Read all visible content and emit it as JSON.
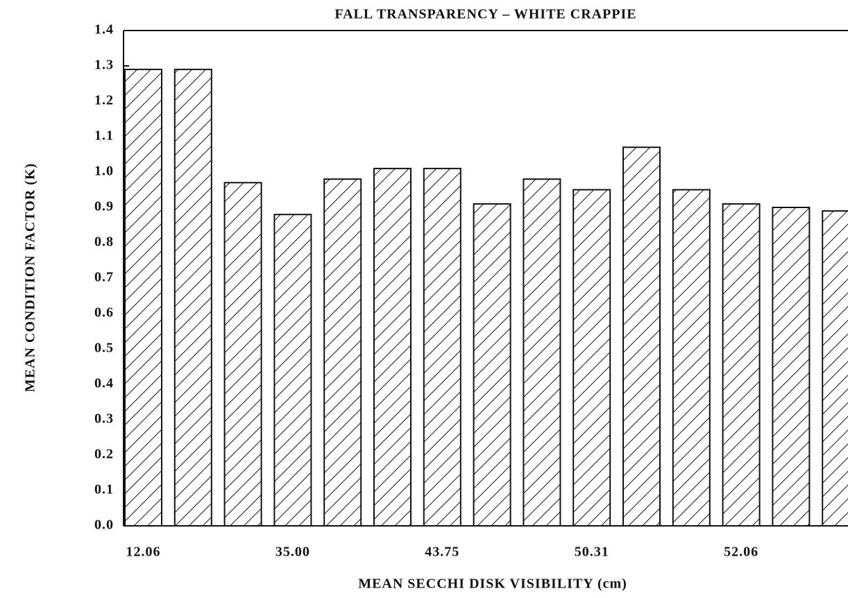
{
  "chart_data": {
    "type": "bar",
    "title": "FALL TRANSPARENCY – WHITE CRAPPIE",
    "x_label": "MEAN SECCHI DISK VISIBILITY (cm)",
    "y_label": "MEAN CONDITION FACTOR (K)",
    "categories": [
      "12.06",
      null,
      null,
      "35.00",
      null,
      null,
      "43.75",
      null,
      null,
      "50.31",
      null,
      null,
      "52.06",
      null,
      null
    ],
    "values": [
      1.29,
      1.29,
      0.97,
      0.88,
      0.98,
      1.01,
      1.01,
      0.91,
      0.98,
      0.95,
      1.07,
      0.95,
      0.91,
      0.9,
      0.89
    ],
    "color": "#111111",
    "ylim": [
      0,
      1.4
    ],
    "yticks": [
      {
        "value": 0,
        "label": "0.0"
      },
      0.1,
      0.2,
      0.3,
      0.4,
      0.5,
      0.6,
      0.7,
      0.8,
      0.9,
      {
        "value": 1,
        "label": "1.0"
      },
      1.1,
      1.2,
      1.3,
      1.4
    ]
  }
}
